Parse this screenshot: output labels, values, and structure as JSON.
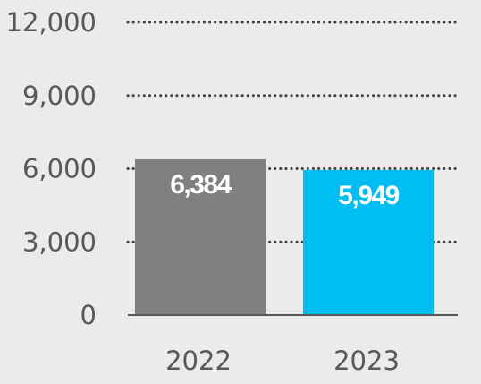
{
  "chart_data": {
    "type": "bar",
    "categories": [
      "2022",
      "2023"
    ],
    "values": [
      6384,
      5949
    ],
    "value_labels": [
      "6,384",
      "5,949"
    ],
    "title": "",
    "xlabel": "",
    "ylabel": "",
    "ylim": [
      0,
      12000
    ],
    "y_ticks": [
      0,
      3000,
      6000,
      9000,
      12000
    ],
    "y_tick_labels": [
      "0",
      "3,000",
      "6,000",
      "9,000",
      "12,000"
    ],
    "grid": "dotted horizontal",
    "legend": "none",
    "bar_colors": [
      "#808080",
      "#00bdf2"
    ],
    "grid_color": "#3f3f3f",
    "axis_color": "#58585a",
    "background_color": "#ebebeb"
  }
}
